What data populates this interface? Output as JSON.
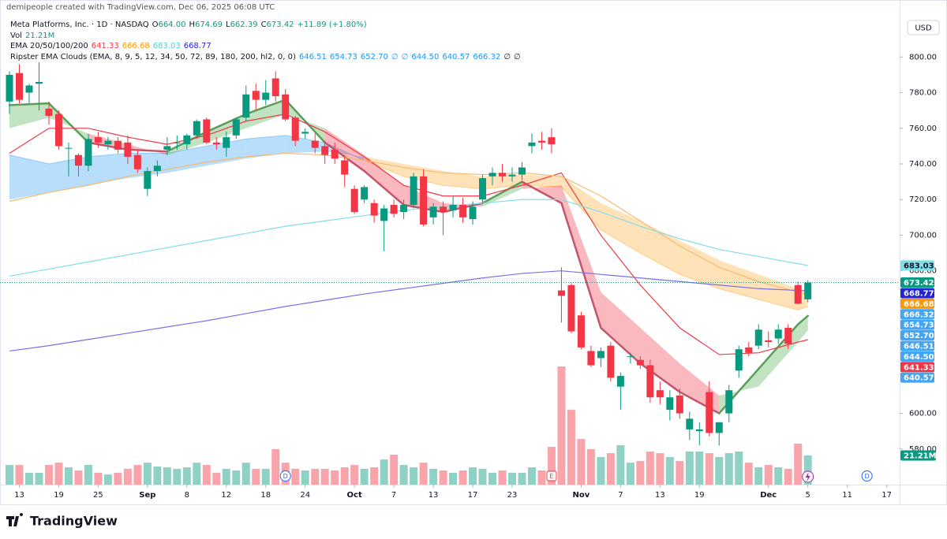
{
  "header": {
    "credit": "demipeople created with TradingView.com, Dec 06, 2025 06:08 UTC",
    "symbol": "Meta Platforms, Inc. · 1D · NASDAQ",
    "ohlc": [
      {
        "key": "O",
        "value": "664.00"
      },
      {
        "key": "H",
        "value": "674.69"
      },
      {
        "key": "L",
        "value": "662.39"
      },
      {
        "key": "C",
        "value": "673.42"
      }
    ],
    "change": "+11.89 (+1.80%)",
    "value_color": "#089981",
    "vol_name": "Vol",
    "vol_value": "21.21M",
    "ema_name": "EMA 20/50/100/200",
    "ema_values": [
      {
        "text": "641.33",
        "color": "#f23645"
      },
      {
        "text": "666.68",
        "color": "#ff9800"
      },
      {
        "text": "683.03",
        "color": "#4dd0e1"
      },
      {
        "text": "668.77",
        "color": "#2323d8"
      }
    ],
    "clouds_name": "Ripster EMA Clouds (EMA, 8, 9, 5, 12, 34, 50, 72, 89, 180, 200, hl2, 0, 0)",
    "clouds_values": [
      "646.51",
      "654.73",
      "652.70",
      "∅",
      "∅",
      "644.50",
      "640.57",
      "666.32",
      "∅",
      "∅"
    ],
    "clouds_color": "#2196f3"
  },
  "currency": "USD",
  "footer": {
    "brand": "TradingView"
  },
  "chart_data": {
    "type": "candlestick",
    "categories": [
      "Aug 12",
      "Aug 13",
      "Aug 14",
      "Aug 15",
      "Aug 18",
      "Aug 19",
      "Aug 20",
      "Aug 21",
      "Aug 22",
      "Aug 25",
      "Aug 26",
      "Aug 27",
      "Aug 28",
      "Aug 29",
      "Sep 2",
      "Sep 3",
      "Sep 4",
      "Sep 5",
      "Sep 8",
      "Sep 9",
      "Sep 10",
      "Sep 11",
      "Sep 12",
      "Sep 15",
      "Sep 16",
      "Sep 17",
      "Sep 18",
      "Sep 19",
      "Sep 22",
      "Sep 23",
      "Sep 24",
      "Sep 25",
      "Sep 26",
      "Sep 29",
      "Sep 30",
      "Oct 1",
      "Oct 2",
      "Oct 3",
      "Oct 6",
      "Oct 7",
      "Oct 8",
      "Oct 9",
      "Oct 10",
      "Oct 13",
      "Oct 14",
      "Oct 15",
      "Oct 16",
      "Oct 17",
      "Oct 20",
      "Oct 21",
      "Oct 22",
      "Oct 23",
      "Oct 24",
      "Oct 27",
      "Oct 28",
      "Oct 29",
      "Oct 30",
      "Oct 31",
      "Nov 3",
      "Nov 4",
      "Nov 5",
      "Nov 6",
      "Nov 7",
      "Nov 10",
      "Nov 11",
      "Nov 12",
      "Nov 13",
      "Nov 14",
      "Nov 17",
      "Nov 18",
      "Nov 19",
      "Nov 20",
      "Nov 21",
      "Nov 24",
      "Nov 25",
      "Nov 26",
      "Nov 28",
      "Dec 1",
      "Dec 2",
      "Dec 3",
      "Dec 4",
      "Dec 5",
      "Dec 8",
      "Dec 9",
      "Dec 10",
      "Dec 11",
      "Dec 12",
      "Dec 15",
      "Dec 16",
      "Dec 17",
      "Dec 18"
    ],
    "open": [
      775,
      791,
      780,
      785,
      771,
      768,
      749,
      745,
      739,
      755,
      751,
      753,
      752,
      745,
      726,
      736,
      748,
      752,
      751,
      756,
      765,
      752,
      749,
      756,
      766,
      781,
      776,
      788,
      779,
      766,
      757,
      753,
      750,
      748,
      742,
      726,
      720,
      718,
      708,
      717,
      713,
      717,
      733,
      710,
      716,
      714,
      717,
      709,
      720,
      733,
      735,
      733,
      734,
      750,
      753,
      755,
      669,
      672,
      655,
      635,
      631,
      638,
      615,
      632,
      630,
      627,
      613,
      602,
      610,
      591,
      590,
      612,
      589,
      600,
      624,
      637,
      638,
      641,
      642,
      648,
      672,
      664.0,
      null,
      null,
      null,
      null,
      null,
      null,
      null,
      null,
      null
    ],
    "high": [
      792,
      796,
      785,
      797,
      775,
      770,
      752,
      746,
      757,
      758,
      755,
      755,
      756,
      748,
      738,
      742,
      755,
      756,
      757,
      765,
      766,
      755,
      758,
      766,
      784,
      785,
      787,
      792,
      782,
      767,
      760,
      757,
      753,
      752,
      745,
      728,
      728,
      720,
      717,
      720,
      720,
      735,
      737,
      718,
      719,
      722,
      721,
      719,
      734,
      738,
      740,
      738,
      741,
      757,
      758,
      760,
      682,
      673,
      657,
      638,
      637,
      640,
      623,
      634,
      632,
      630,
      618,
      613,
      614,
      601,
      595,
      618,
      595,
      616,
      638,
      640,
      650,
      646,
      650,
      650,
      674,
      674.69,
      null,
      null,
      null,
      null,
      null,
      null,
      null,
      null,
      null
    ],
    "low": [
      768,
      774,
      774,
      770,
      762,
      748,
      733,
      733,
      736,
      749,
      748,
      746,
      740,
      735,
      722,
      733,
      745,
      748,
      748,
      754,
      751,
      748,
      744,
      754,
      764,
      770,
      773,
      775,
      764,
      750,
      754,
      746,
      740,
      740,
      727,
      712,
      718,
      707,
      691,
      710,
      709,
      715,
      705,
      706,
      700,
      710,
      707,
      706,
      718,
      728,
      730,
      730,
      731,
      746,
      748,
      746,
      651,
      645,
      636,
      626,
      626,
      618,
      602,
      628,
      625,
      606,
      605,
      596,
      597,
      585,
      582,
      587,
      582,
      595,
      620,
      632,
      636,
      637,
      639,
      636,
      661,
      662.39,
      null,
      null,
      null,
      null,
      null,
      null,
      null,
      null,
      null
    ],
    "close": [
      790,
      776,
      784,
      786,
      767,
      750,
      749,
      739,
      754,
      752,
      753,
      748,
      744,
      737,
      736,
      739,
      750,
      752,
      756,
      764,
      752,
      751,
      755,
      765,
      779,
      776,
      780,
      778,
      765,
      753,
      758,
      749,
      745,
      743,
      734,
      713,
      727,
      711,
      715,
      712,
      717,
      733,
      706,
      716,
      713,
      717,
      710,
      716,
      732,
      735,
      733,
      734,
      738,
      752,
      752,
      751,
      666,
      646,
      637,
      627,
      635,
      620,
      621,
      632,
      627,
      609,
      609,
      609,
      600,
      597,
      591,
      589,
      595,
      613,
      636,
      634,
      647,
      640,
      647,
      639,
      661.53,
      673.42,
      null,
      null,
      null,
      null,
      null,
      null,
      null,
      null,
      null
    ],
    "volume": [
      14.3,
      14.3,
      8.6,
      8.6,
      14.3,
      16.0,
      12.6,
      10.3,
      14.3,
      8.6,
      7.4,
      8.6,
      11.5,
      14.3,
      16.0,
      13.2,
      12.6,
      11.5,
      12.6,
      16.0,
      14.3,
      8.6,
      11.5,
      10.3,
      16.0,
      11.5,
      11.5,
      25.8,
      16.0,
      11.5,
      10.3,
      11.5,
      11.5,
      10.3,
      12.6,
      14.3,
      11.5,
      12.6,
      18.3,
      21.8,
      14.3,
      12.6,
      16.0,
      11.5,
      10.3,
      8.6,
      10.3,
      12.6,
      11.5,
      8.6,
      10.3,
      8.6,
      8.6,
      12.6,
      10.3,
      27.5,
      86.0,
      54.4,
      33.2,
      25.8,
      20.1,
      22.9,
      28.7,
      16.0,
      17.2,
      24.1,
      22.9,
      20.1,
      17.2,
      24.1,
      24.1,
      22.9,
      20.1,
      22.9,
      24.1,
      16.0,
      12.6,
      14.3,
      12.6,
      11.5,
      29.8,
      21.21,
      null,
      null,
      null,
      null,
      null,
      null,
      null,
      null,
      null
    ],
    "last_volume_label": "21.21M",
    "up_color": "#089981",
    "down_color": "#f23645",
    "volume_up_color": "rgba(8,153,129,0.45)",
    "volume_down_color": "rgba(242,54,69,0.45)",
    "ylim": [
      560,
      832
    ],
    "yticks": [
      {
        "value": 580,
        "label": "580.00"
      },
      {
        "value": 600,
        "label": "600.00"
      },
      {
        "value": 680,
        "label": "680.00"
      },
      {
        "value": 700,
        "label": "700.00"
      },
      {
        "value": 720,
        "label": "720.00"
      },
      {
        "value": 740,
        "label": "740.00"
      },
      {
        "value": 760,
        "label": "760.00"
      },
      {
        "value": 780,
        "label": "780.00"
      },
      {
        "value": 800,
        "label": "800.00"
      }
    ],
    "xticks": [
      {
        "value": "Aug 13",
        "label": "13"
      },
      {
        "value": "Aug 19",
        "label": "19"
      },
      {
        "value": "Aug 25",
        "label": "25"
      },
      {
        "value": "Sep 2",
        "label": "Sep"
      },
      {
        "value": "Sep 8",
        "label": "8"
      },
      {
        "value": "Sep 12",
        "label": "12"
      },
      {
        "value": "Sep 18",
        "label": "18"
      },
      {
        "value": "Sep 24",
        "label": "24"
      },
      {
        "value": "Oct 1",
        "label": "Oct"
      },
      {
        "value": "Oct 7",
        "label": "7"
      },
      {
        "value": "Oct 13",
        "label": "13"
      },
      {
        "value": "Oct 17",
        "label": "17"
      },
      {
        "value": "Oct 23",
        "label": "23"
      },
      {
        "value": "Nov 3",
        "label": "Nov"
      },
      {
        "value": "Nov 7",
        "label": "7"
      },
      {
        "value": "Nov 13",
        "label": "13"
      },
      {
        "value": "Nov 19",
        "label": "19"
      },
      {
        "value": "Dec 1",
        "label": "Dec"
      },
      {
        "value": "Dec 5",
        "label": "5"
      },
      {
        "value": "Dec 11",
        "label": "11"
      },
      {
        "value": "Dec 17",
        "label": "17"
      }
    ],
    "grid": false,
    "events": [
      {
        "date": "Sep 22",
        "label": "D"
      },
      {
        "date": "Oct 29",
        "label": "E"
      },
      {
        "date": "Dec 15",
        "label": "D"
      }
    ],
    "indicators": {
      "dates": [
        "Aug 12",
        "Aug 18",
        "Aug 22",
        "Aug 28",
        "Sep 4",
        "Sep 10",
        "Sep 16",
        "Sep 22",
        "Sep 26",
        "Oct 2",
        "Oct 8",
        "Oct 14",
        "Oct 20",
        "Oct 24",
        "Oct 30",
        "Nov 5",
        "Nov 11",
        "Nov 17",
        "Nov 21",
        "Nov 28",
        "Dec 4",
        "Dec 5"
      ],
      "clouds": [
        {
          "up_color": "rgba(100,181,246,0.45)",
          "down_color": "rgba(255,183,77,0.4)",
          "up_line": "#90caf9",
          "down_line": "#ffcc80",
          "line_width": 1,
          "fast": [
            745,
            740,
            744,
            746,
            746,
            750,
            754,
            756,
            752,
            742,
            733,
            728,
            726,
            728,
            727,
            703,
            690,
            678,
            670,
            664,
            658,
            660
          ],
          "slow": [
            720,
            724,
            728,
            732,
            735,
            739,
            743,
            746,
            747,
            744,
            740,
            736,
            733,
            734,
            733,
            718,
            708,
            697,
            686,
            678,
            670,
            668
          ]
        },
        {
          "up_color": "rgba(76,175,80,0.35)",
          "down_color": "rgba(242,54,69,0.35)",
          "up_line": "#5a9e5c",
          "down_line": "#c4546a",
          "line_width": 2.5,
          "fast": [
            773,
            774,
            752,
            748,
            747,
            758,
            768,
            776,
            752,
            736,
            717,
            713,
            718,
            730,
            718,
            648,
            628,
            612,
            600,
            625,
            650,
            654.73
          ],
          "slow": [
            760,
            766,
            757,
            751,
            745,
            752,
            760,
            768,
            760,
            745,
            728,
            718,
            716,
            726,
            728,
            668,
            648,
            628,
            610,
            615,
            640,
            646.51
          ]
        }
      ],
      "emas": [
        {
          "color": "#f23645",
          "values": [
            746,
            760,
            760,
            755,
            751,
            756,
            764,
            768,
            758,
            744,
            728,
            722,
            722,
            728,
            735,
            700,
            672,
            648,
            633,
            634,
            640,
            641.33
          ]
        },
        {
          "color": "#f5b971",
          "values": [
            719,
            724,
            728,
            733,
            737,
            741,
            744,
            746,
            745,
            742,
            738,
            735,
            734,
            735,
            733,
            722,
            708,
            694,
            682,
            674,
            668,
            666.68
          ]
        },
        {
          "color": "#80deea",
          "values": [
            677,
            681,
            685,
            689,
            693,
            697,
            701,
            705,
            708,
            711,
            714,
            716,
            718,
            720,
            720,
            713,
            705,
            698,
            692,
            688,
            684,
            683.03
          ]
        },
        {
          "color": "#7b6ee8",
          "values": [
            635,
            638,
            641.5,
            645,
            648.5,
            652,
            656,
            660,
            663.5,
            667,
            670,
            673,
            676,
            678.5,
            680,
            678,
            676,
            674,
            672,
            670,
            669,
            668.77
          ]
        }
      ]
    },
    "price_labels": [
      {
        "value": 683.03,
        "color": "#80deea",
        "text_color": "#131722"
      },
      {
        "value": 673.42,
        "color": "#089981",
        "text_color": "#ffffff"
      },
      {
        "value": 668.77,
        "color": "#2323d8",
        "text_color": "#ffffff"
      },
      {
        "value": 666.68,
        "color": "#ff9800",
        "text_color": "#ffffff"
      },
      {
        "value": 666.32,
        "color": "#42a5f5",
        "text_color": "#ffffff"
      },
      {
        "value": 654.73,
        "color": "#42a5f5",
        "text_color": "#ffffff"
      },
      {
        "value": 652.7,
        "label": "652.70",
        "color": "#42a5f5",
        "text_color": "#ffffff"
      },
      {
        "value": 646.51,
        "color": "#42a5f5",
        "text_color": "#ffffff"
      },
      {
        "value": 644.5,
        "label": "644.50",
        "color": "#42a5f5",
        "text_color": "#ffffff"
      },
      {
        "value": 641.33,
        "color": "#f23645",
        "text_color": "#ffffff"
      },
      {
        "value": 640.57,
        "color": "#42a5f5",
        "text_color": "#ffffff"
      }
    ]
  }
}
